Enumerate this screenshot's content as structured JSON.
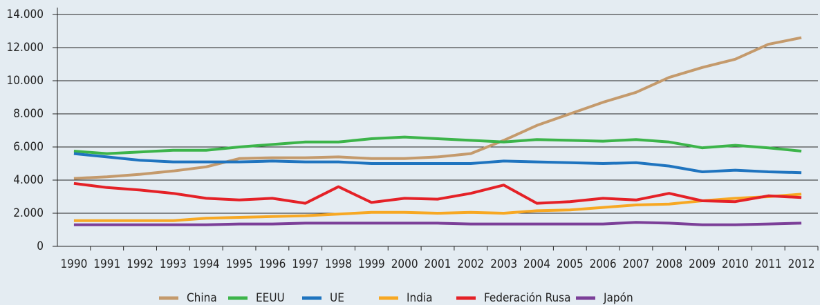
{
  "chart_data": {
    "type": "line",
    "categories": [
      "1990",
      "1991",
      "1992",
      "1993",
      "1994",
      "1995",
      "1996",
      "1997",
      "1998",
      "1999",
      "2000",
      "2001",
      "2002",
      "2003",
      "2004",
      "2005",
      "2006",
      "2007",
      "2008",
      "2009",
      "2010",
      "2011",
      "2012"
    ],
    "series": [
      {
        "name": "China",
        "color": "#c49a6c",
        "values": [
          4100,
          4200,
          4350,
          4550,
          4800,
          5300,
          5350,
          5350,
          5400,
          5300,
          5300,
          5400,
          5600,
          6400,
          7300,
          8000,
          8700,
          9300,
          10200,
          10800,
          11300,
          12200,
          12600
        ]
      },
      {
        "name": "EEUU",
        "color": "#3cb44a",
        "values": [
          5750,
          5600,
          5700,
          5800,
          5800,
          6000,
          6150,
          6300,
          6300,
          6500,
          6600,
          6500,
          6400,
          6300,
          6450,
          6400,
          6350,
          6450,
          6300,
          5950,
          6100,
          5950,
          5750
        ]
      },
      {
        "name": "UE",
        "color": "#1f74bf",
        "values": [
          5600,
          5400,
          5200,
          5100,
          5100,
          5100,
          5150,
          5100,
          5100,
          5000,
          5000,
          5000,
          5000,
          5150,
          5100,
          5050,
          5000,
          5050,
          4850,
          4500,
          4600,
          4500,
          4450
        ]
      },
      {
        "name": "India",
        "color": "#f7a823",
        "values": [
          1550,
          1550,
          1550,
          1550,
          1700,
          1750,
          1800,
          1850,
          1950,
          2050,
          2050,
          2000,
          2050,
          2000,
          2150,
          2200,
          2350,
          2500,
          2550,
          2750,
          2900,
          3000,
          3150
        ]
      },
      {
        "name": "Federación Rusa",
        "color": "#e42127",
        "values": [
          3800,
          3550,
          3400,
          3200,
          2900,
          2800,
          2900,
          2600,
          3600,
          2650,
          2900,
          2850,
          3200,
          3700,
          2600,
          2700,
          2900,
          2800,
          3200,
          2750,
          2700,
          3050,
          2950
        ]
      },
      {
        "name": "Japón",
        "color": "#7b3f98",
        "values": [
          1300,
          1300,
          1300,
          1300,
          1300,
          1350,
          1350,
          1400,
          1400,
          1400,
          1400,
          1400,
          1350,
          1350,
          1350,
          1350,
          1350,
          1450,
          1400,
          1300,
          1300,
          1350,
          1400
        ]
      }
    ],
    "ylim": [
      0,
      14000
    ],
    "yticks": [
      0,
      {
        "value": 2000,
        "label": "2.000"
      },
      {
        "value": 4000,
        "label": "4.000"
      },
      {
        "value": 6000,
        "label": "6.000"
      },
      {
        "value": 8000,
        "label": "8.000"
      },
      {
        "value": 10000,
        "label": "10.000"
      },
      {
        "value": 12000,
        "label": "12.000"
      },
      {
        "value": 14000,
        "label": "14.000"
      }
    ],
    "grid": true,
    "legend": "bottom"
  }
}
